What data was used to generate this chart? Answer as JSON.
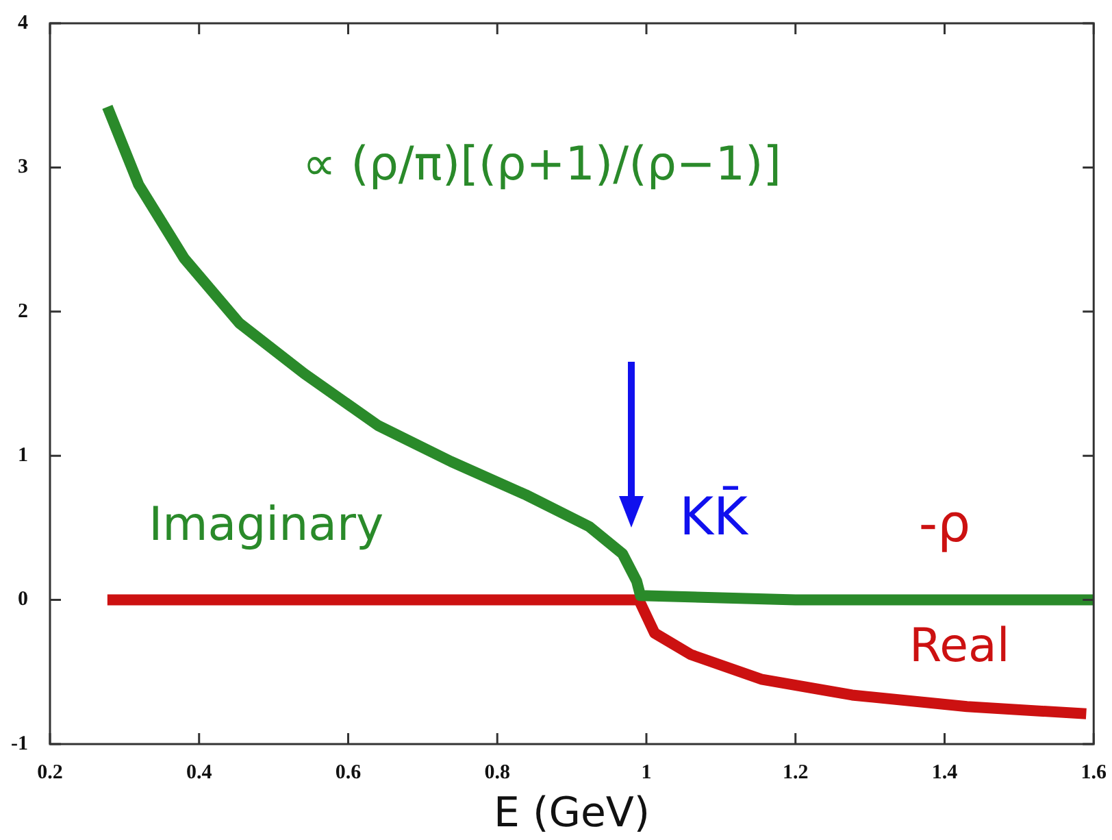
{
  "chart_data": {
    "type": "line",
    "xlabel": "E (GeV)",
    "xlim": [
      0.2,
      1.6
    ],
    "xticks": [
      0.2,
      0.4,
      0.6,
      0.8,
      1,
      1.2,
      1.4,
      1.6
    ],
    "ylim": [
      -1,
      4
    ],
    "yticks": [
      -1,
      0,
      1,
      2,
      3,
      4
    ],
    "grid": false,
    "legend": false,
    "marker": "none",
    "line_style": "solid",
    "series": [
      {
        "name": "Imaginary",
        "color": "#2a8a2a",
        "x": [
          0.277,
          0.319,
          0.38,
          0.454,
          0.541,
          0.64,
          0.738,
          0.838,
          0.923,
          0.968,
          0.987,
          0.992,
          1.2,
          1.4,
          1.6
        ],
        "values": [
          3.42,
          2.88,
          2.37,
          1.92,
          1.57,
          1.21,
          0.96,
          0.73,
          0.51,
          0.32,
          0.13,
          0.03,
          0,
          0,
          0
        ]
      },
      {
        "name": "Real",
        "color": "#cc1111",
        "x": [
          0.277,
          0.6,
          0.9,
          0.99,
          1.011,
          1.06,
          1.154,
          1.276,
          1.43,
          1.59
        ],
        "values": [
          0,
          0,
          0,
          0,
          -0.23,
          -0.38,
          -0.55,
          -0.66,
          -0.74,
          -0.79
        ]
      }
    ],
    "annotations": [
      "∝ (ρ/π)[(ρ+1)/(ρ−1)]",
      "KK̄",
      "-ρ"
    ]
  }
}
